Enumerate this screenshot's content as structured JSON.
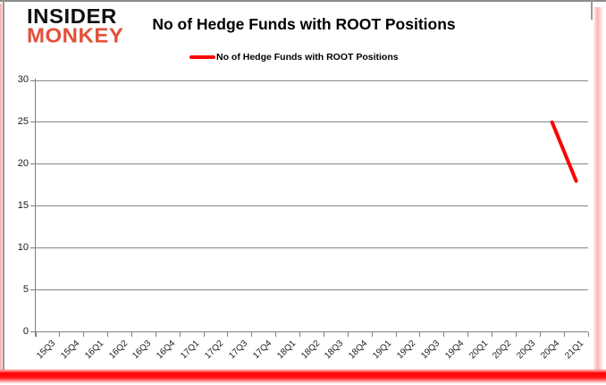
{
  "logo": {
    "line1": "INSIDER",
    "line2": "MONKEY"
  },
  "title": "No of Hedge Funds with ROOT Positions",
  "legend": {
    "label": "No of Hedge Funds with ROOT Positions"
  },
  "colors": {
    "series": "#ff0000",
    "grid": "#858585",
    "axis": "#808080",
    "logo_accent": "#e2503a",
    "text": "#000000"
  },
  "chart_data": {
    "type": "line",
    "title": "No of Hedge Funds with ROOT Positions",
    "categories": [
      "15Q3",
      "15Q4",
      "16Q1",
      "16Q2",
      "16Q3",
      "16Q4",
      "17Q1",
      "17Q2",
      "17Q3",
      "17Q4",
      "18Q1",
      "18Q2",
      "18Q3",
      "18Q4",
      "19Q1",
      "19Q2",
      "19Q3",
      "19Q4",
      "20Q1",
      "20Q2",
      "20Q3",
      "20Q4",
      "21Q1"
    ],
    "series": [
      {
        "name": "No of Hedge Funds with ROOT Positions",
        "color": "#ff0000",
        "values": [
          null,
          null,
          null,
          null,
          null,
          null,
          null,
          null,
          null,
          null,
          null,
          null,
          null,
          null,
          null,
          null,
          null,
          null,
          null,
          null,
          null,
          25,
          18
        ]
      }
    ],
    "ylim": [
      0,
      30
    ],
    "ytick_step": 5,
    "yticks": [
      0,
      5,
      10,
      15,
      20,
      25,
      30
    ],
    "grid": true,
    "legend_position": "top-center",
    "xlabel": "",
    "ylabel": ""
  }
}
